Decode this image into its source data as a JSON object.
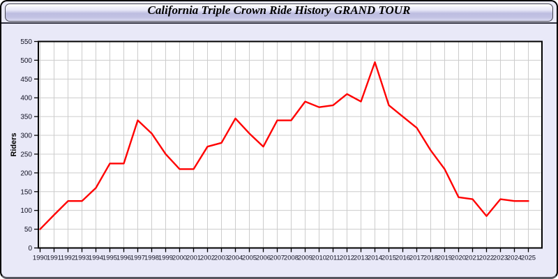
{
  "title": "California Triple Crown Ride History GRAND TOUR",
  "chart_data": {
    "type": "line",
    "title": "California Triple Crown Ride History GRAND TOUR",
    "xlabel": "",
    "ylabel": "Riders",
    "x": [
      1990,
      1991,
      1992,
      1993,
      1994,
      1995,
      1996,
      1997,
      1998,
      1999,
      2000,
      2001,
      2002,
      2003,
      2004,
      2005,
      2006,
      2007,
      2008,
      2009,
      2010,
      2011,
      2012,
      2013,
      2014,
      2015,
      2016,
      2017,
      2018,
      2019,
      2020,
      2021,
      2022,
      2023,
      2024,
      2025
    ],
    "series": [
      {
        "name": "Riders",
        "values": [
          50,
          88,
          125,
          125,
          160,
          225,
          225,
          340,
          305,
          250,
          210,
          210,
          270,
          280,
          345,
          305,
          270,
          340,
          340,
          390,
          375,
          380,
          410,
          390,
          495,
          380,
          350,
          320,
          260,
          210,
          135,
          130,
          85,
          130,
          125,
          125
        ]
      }
    ],
    "ylim": [
      0,
      550
    ],
    "ytick_step": 50,
    "yticks": [
      0,
      50,
      100,
      150,
      200,
      250,
      300,
      350,
      400,
      450,
      500,
      550
    ],
    "grid": true,
    "legend_position": "none"
  },
  "colors": {
    "line": "#ff0000",
    "grid": "#cccccc",
    "axis": "#000000",
    "plot_background": "#ffffff",
    "panel_background": "#e9e9f8",
    "tick_label": "#111122"
  }
}
